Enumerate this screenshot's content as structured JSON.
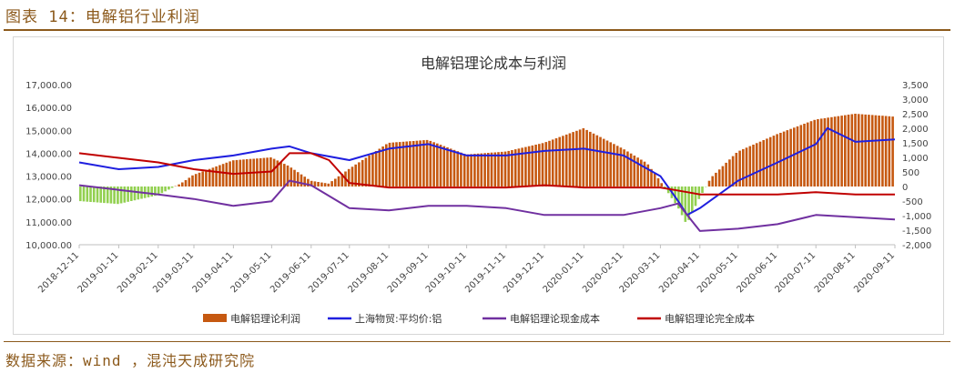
{
  "figure_title": "图表 14：电解铝行业利润",
  "source_note": "数据来源：wind ，混沌天成研究院",
  "colors": {
    "profit": "#c65911",
    "price": "#1f1fdf",
    "cash_cost": "#7030a0",
    "full_cost": "#c00000",
    "negative_profit": "#92d050"
  },
  "chart_data": {
    "type": "line",
    "title": "电解铝理论成本与利润",
    "legend_position": "bottom",
    "y_left": {
      "min": 10000,
      "max": 17000,
      "step": 1000,
      "tick_labels": [
        "10,000.00",
        "11,000.00",
        "12,000.00",
        "13,000.00",
        "14,000.00",
        "15,000.00",
        "16,000.00",
        "17,000.00"
      ]
    },
    "y_right": {
      "min": -2000,
      "max": 3500,
      "step": 500,
      "tick_labels": [
        "-2,000",
        "-1,500",
        "-1,000",
        "-500",
        "0",
        "500",
        "1,000",
        "1,500",
        "2,000",
        "2,500",
        "3,000",
        "3,500"
      ]
    },
    "x_tick_labels": [
      "2018-12-11",
      "2019-01-11",
      "2019-02-11",
      "2019-03-11",
      "2019-04-11",
      "2019-05-11",
      "2019-06-11",
      "2019-07-11",
      "2019-08-11",
      "2019-09-11",
      "2019-10-11",
      "2019-11-11",
      "2019-12-11",
      "2020-01-11",
      "2020-02-11",
      "2020-03-11",
      "2020-04-11",
      "2020-05-11",
      "2020-06-11",
      "2020-07-11",
      "2020-08-11",
      "2020-09-11"
    ],
    "series": [
      {
        "name": "电解铝理论利润",
        "axis": "right",
        "kind": "bar",
        "x": [
          "2018-12-11",
          "2019-01-11",
          "2019-02-11",
          "2019-03-01",
          "2019-03-11",
          "2019-04-11",
          "2019-05-11",
          "2019-05-25",
          "2019-06-11",
          "2019-06-25",
          "2019-07-11",
          "2019-08-11",
          "2019-09-11",
          "2019-10-11",
          "2019-11-11",
          "2019-12-11",
          "2020-01-11",
          "2020-02-11",
          "2020-03-01",
          "2020-03-11",
          "2020-03-25",
          "2020-04-01",
          "2020-04-11",
          "2020-04-20",
          "2020-05-11",
          "2020-06-11",
          "2020-07-11",
          "2020-08-11",
          "2020-09-11"
        ],
        "values": [
          -500,
          -600,
          -300,
          100,
          400,
          900,
          1000,
          700,
          200,
          100,
          600,
          1500,
          1600,
          1100,
          1200,
          1500,
          2000,
          1300,
          800,
          200,
          -700,
          -1300,
          -400,
          300,
          1200,
          1800,
          2300,
          2500,
          2400
        ]
      },
      {
        "name": "上海物贸:平均价:铝",
        "axis": "left",
        "kind": "line",
        "x": [
          "2018-12-11",
          "2019-01-11",
          "2019-02-11",
          "2019-03-11",
          "2019-04-11",
          "2019-05-11",
          "2019-05-25",
          "2019-06-11",
          "2019-07-11",
          "2019-08-11",
          "2019-09-11",
          "2019-10-11",
          "2019-11-11",
          "2019-12-11",
          "2020-01-11",
          "2020-02-11",
          "2020-03-11",
          "2020-03-25",
          "2020-04-01",
          "2020-04-11",
          "2020-05-11",
          "2020-06-11",
          "2020-07-11",
          "2020-07-20",
          "2020-08-11",
          "2020-09-11"
        ],
        "values": [
          13600,
          13300,
          13400,
          13700,
          13900,
          14200,
          14300,
          14000,
          13700,
          14200,
          14400,
          13900,
          13900,
          14100,
          14200,
          13900,
          13000,
          11900,
          11300,
          11600,
          12800,
          13600,
          14400,
          15100,
          14500,
          14600
        ]
      },
      {
        "name": "电解铝理论现金成本",
        "axis": "left",
        "kind": "line",
        "x": [
          "2018-12-11",
          "2019-01-11",
          "2019-02-11",
          "2019-03-11",
          "2019-04-11",
          "2019-05-11",
          "2019-05-25",
          "2019-06-11",
          "2019-07-11",
          "2019-08-11",
          "2019-09-11",
          "2019-10-11",
          "2019-11-11",
          "2019-12-11",
          "2020-01-11",
          "2020-02-11",
          "2020-03-11",
          "2020-03-25",
          "2020-04-01",
          "2020-04-11",
          "2020-05-11",
          "2020-06-11",
          "2020-07-11",
          "2020-08-11",
          "2020-09-11"
        ],
        "values": [
          12600,
          12400,
          12200,
          12000,
          11700,
          11900,
          12800,
          12600,
          11600,
          11500,
          11700,
          11700,
          11600,
          11300,
          11300,
          11300,
          11600,
          11800,
          11300,
          10600,
          10700,
          10900,
          11300,
          11200,
          11100
        ]
      },
      {
        "name": "电解铝理论完全成本",
        "axis": "left",
        "kind": "line",
        "x": [
          "2018-12-11",
          "2019-01-11",
          "2019-02-11",
          "2019-03-11",
          "2019-04-11",
          "2019-05-11",
          "2019-05-25",
          "2019-06-11",
          "2019-06-25",
          "2019-07-11",
          "2019-08-11",
          "2019-09-11",
          "2019-10-11",
          "2019-11-11",
          "2019-12-11",
          "2020-01-11",
          "2020-02-11",
          "2020-03-11",
          "2020-04-01",
          "2020-04-11",
          "2020-05-11",
          "2020-06-11",
          "2020-07-11",
          "2020-08-11",
          "2020-09-11"
        ],
        "values": [
          14000,
          13800,
          13600,
          13300,
          13100,
          13200,
          14000,
          14000,
          13700,
          12700,
          12500,
          12500,
          12500,
          12500,
          12600,
          12500,
          12500,
          12500,
          12300,
          12200,
          12200,
          12200,
          12300,
          12200,
          12200
        ]
      }
    ]
  }
}
